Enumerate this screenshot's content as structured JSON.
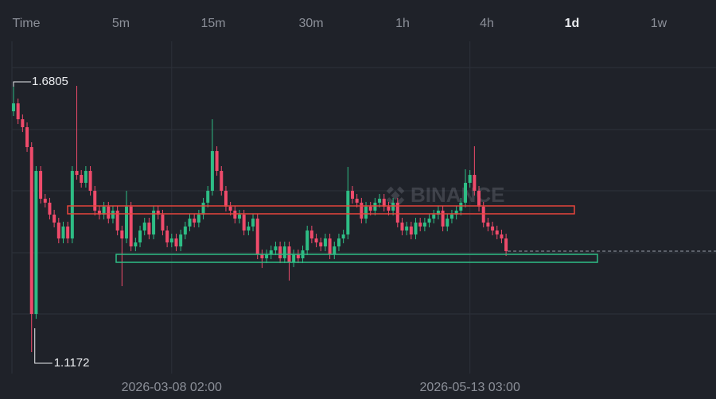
{
  "toolbar": [
    "Time",
    "5m",
    "15m",
    "30m",
    "1h",
    "4h",
    "1d",
    "1w"
  ],
  "selected": "1d",
  "chart_data": {
    "type": "candlestick",
    "watermark": "BINANCE",
    "up_color": "#2ebd85",
    "down_color": "#ef4b6b",
    "ylim": [
      1.0725,
      1.7766
    ],
    "categories": [
      null,
      null,
      null,
      null,
      null,
      null,
      null,
      null,
      null,
      null,
      null,
      null,
      null,
      null,
      null,
      null,
      null,
      null,
      null,
      null,
      null,
      null,
      null,
      null,
      null,
      null,
      null,
      null,
      null,
      null,
      null,
      null,
      null,
      null,
      null,
      "2026-03-08 02:00",
      null,
      null,
      null,
      null,
      null,
      null,
      null,
      null,
      null,
      null,
      null,
      null,
      null,
      null,
      null,
      null,
      null,
      null,
      null,
      null,
      null,
      null,
      null,
      null,
      null,
      null,
      null,
      null,
      null,
      null,
      null,
      null,
      null,
      null,
      null,
      null,
      null,
      null,
      null,
      null,
      null,
      null,
      null,
      null,
      null,
      null,
      null,
      null,
      null,
      null,
      null,
      null,
      null,
      null,
      null,
      null,
      null,
      null,
      null,
      null,
      null,
      null,
      null,
      null,
      null,
      "2026-05-13 03:00",
      null,
      null,
      null,
      null,
      null,
      null,
      null,
      null
    ],
    "open": [
      1.6192,
      1.6357,
      1.6026,
      1.586,
      1.5446,
      1.1967,
      1.4949,
      1.4369,
      1.4287,
      1.4038,
      1.3872,
      1.3541,
      1.379,
      1.3541,
      1.4949,
      1.4866,
      1.4701,
      1.4949,
      1.4535,
      1.4121,
      1.4038,
      1.4204,
      1.3955,
      1.4121,
      1.3707,
      1.3541,
      1.4204,
      1.3375,
      1.3458,
      1.3707,
      1.3872,
      1.3624,
      1.4121,
      1.4038,
      1.3707,
      1.3458,
      1.3541,
      1.3375,
      1.3624,
      1.379,
      1.3955,
      1.3872,
      1.4038,
      1.4287,
      1.4535,
      1.5363,
      1.4949,
      1.4535,
      1.4204,
      1.4121,
      1.3955,
      1.4038,
      1.3707,
      1.379,
      1.3955,
      1.321,
      1.3127,
      1.321,
      1.3293,
      1.3375,
      1.3127,
      1.3375,
      1.3044,
      1.321,
      1.3127,
      1.3293,
      1.3707,
      1.3541,
      1.3458,
      1.3375,
      1.3541,
      1.321,
      1.3375,
      1.3541,
      1.3624,
      1.4535,
      1.4369,
      1.4287,
      1.3955,
      1.4204,
      1.4121,
      1.4287,
      1.4369,
      1.4204,
      1.4121,
      1.4287,
      1.3872,
      1.3707,
      1.379,
      1.3624,
      1.3872,
      1.379,
      1.3872,
      1.3955,
      1.4038,
      1.4121,
      1.379,
      1.3955,
      1.4038,
      1.4121,
      1.4287,
      1.4701,
      1.4866,
      1.4535,
      1.4204,
      1.3872,
      1.379,
      1.3707,
      1.3624,
      1.3541
    ],
    "high": [
      1.6805,
      1.6457,
      1.6126,
      1.596,
      1.5546,
      1.5049,
      1.5049,
      1.4469,
      1.4387,
      1.4138,
      1.3972,
      1.389,
      1.389,
      1.5049,
      1.6722,
      1.4966,
      1.5049,
      1.5049,
      1.4635,
      1.4221,
      1.4304,
      1.4304,
      1.4221,
      1.4221,
      1.3807,
      1.4535,
      1.4304,
      1.3558,
      1.3807,
      1.3972,
      1.3972,
      1.4221,
      1.4221,
      1.4138,
      1.3807,
      1.3641,
      1.3641,
      1.3724,
      1.389,
      1.4055,
      1.4055,
      1.4138,
      1.4387,
      1.4635,
      1.6026,
      1.5463,
      1.5049,
      1.4635,
      1.4304,
      1.4221,
      1.4138,
      1.4138,
      1.389,
      1.4055,
      1.4055,
      1.331,
      1.331,
      1.3393,
      1.3475,
      1.3475,
      1.3475,
      1.3475,
      1.331,
      1.331,
      1.3393,
      1.3807,
      1.3807,
      1.3641,
      1.3558,
      1.3641,
      1.3641,
      1.3475,
      1.3641,
      1.3724,
      1.5032,
      1.4635,
      1.4469,
      1.4387,
      1.4304,
      1.4304,
      1.4387,
      1.4469,
      1.4469,
      1.4304,
      1.4387,
      1.4387,
      1.3972,
      1.389,
      1.389,
      1.3972,
      1.3972,
      1.3972,
      1.4055,
      1.4138,
      1.4221,
      1.4221,
      1.4055,
      1.4138,
      1.4221,
      1.4387,
      1.4982,
      1.4966,
      1.5463,
      1.4635,
      1.4304,
      1.3972,
      1.389,
      1.3807,
      1.3724,
      1.3641
    ],
    "low": [
      1.6092,
      1.5926,
      1.576,
      1.5346,
      1.1172,
      1.1867,
      1.4269,
      1.4187,
      1.3938,
      1.3772,
      1.3441,
      1.3441,
      1.3441,
      1.3441,
      1.4766,
      1.4601,
      1.4601,
      1.4435,
      1.4021,
      1.3938,
      1.3938,
      1.3855,
      1.3855,
      1.3607,
      1.2547,
      1.3441,
      1.3275,
      1.3275,
      1.3358,
      1.3607,
      1.3524,
      1.3524,
      1.3938,
      1.3607,
      1.3358,
      1.3358,
      1.3275,
      1.3275,
      1.3524,
      1.369,
      1.3772,
      1.3772,
      1.3938,
      1.4187,
      1.4435,
      1.4849,
      1.4435,
      1.4104,
      1.4021,
      1.3855,
      1.3855,
      1.3607,
      1.3607,
      1.369,
      1.311,
      1.2927,
      1.3027,
      1.311,
      1.3193,
      1.3027,
      1.3027,
      1.2663,
      1.2944,
      1.3027,
      1.3027,
      1.3193,
      1.3441,
      1.3358,
      1.3275,
      1.3275,
      1.311,
      1.311,
      1.3275,
      1.3441,
      1.3524,
      1.4269,
      1.4187,
      1.3855,
      1.3855,
      1.4021,
      1.4021,
      1.4187,
      1.4104,
      1.4021,
      1.4021,
      1.3772,
      1.3607,
      1.3607,
      1.3524,
      1.3524,
      1.369,
      1.369,
      1.3772,
      1.3855,
      1.3938,
      1.369,
      1.369,
      1.3855,
      1.3938,
      1.4021,
      1.4187,
      1.4601,
      1.4435,
      1.4104,
      1.3772,
      1.369,
      1.3607,
      1.3524,
      1.3441,
      1.3176
    ],
    "close": [
      1.6357,
      1.6026,
      1.586,
      1.5446,
      1.1967,
      1.4949,
      1.4369,
      1.4287,
      1.4038,
      1.3872,
      1.3541,
      1.379,
      1.3541,
      1.4949,
      1.4866,
      1.4701,
      1.4949,
      1.4535,
      1.4121,
      1.4038,
      1.4204,
      1.3955,
      1.4121,
      1.3707,
      1.3541,
      1.4204,
      1.3375,
      1.3458,
      1.3707,
      1.3872,
      1.3624,
      1.4121,
      1.4038,
      1.3707,
      1.3458,
      1.3541,
      1.3375,
      1.3624,
      1.379,
      1.3955,
      1.3872,
      1.4038,
      1.4287,
      1.4535,
      1.5363,
      1.4949,
      1.4535,
      1.4204,
      1.4121,
      1.3955,
      1.4038,
      1.3707,
      1.379,
      1.3955,
      1.321,
      1.3127,
      1.321,
      1.3293,
      1.3375,
      1.3127,
      1.3375,
      1.3044,
      1.321,
      1.3127,
      1.3293,
      1.3707,
      1.3541,
      1.3458,
      1.3375,
      1.3541,
      1.321,
      1.3375,
      1.3541,
      1.3624,
      1.4535,
      1.4369,
      1.4287,
      1.3955,
      1.4204,
      1.4121,
      1.4287,
      1.4369,
      1.4204,
      1.4121,
      1.4287,
      1.3872,
      1.3707,
      1.379,
      1.3624,
      1.3872,
      1.379,
      1.3872,
      1.3955,
      1.4038,
      1.4121,
      1.379,
      1.3955,
      1.4038,
      1.4121,
      1.4287,
      1.4701,
      1.4866,
      1.4535,
      1.4204,
      1.3872,
      1.379,
      1.3707,
      1.3624,
      1.3541,
      1.3276
    ],
    "zones": [
      {
        "color": "#e8453c",
        "range": [
          1.422,
          1.4055
        ]
      },
      {
        "color": "#2ebd85",
        "range": [
          1.321,
          1.3044
        ]
      }
    ]
  }
}
